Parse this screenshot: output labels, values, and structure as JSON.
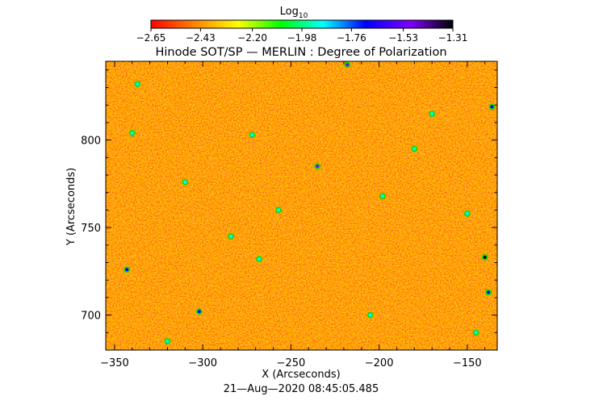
{
  "chart_data": {
    "type": "heatmap",
    "title": "Hinode SOT/SP — MERLIN : Degree of Polarization",
    "xlabel": "X (Arcseconds)",
    "ylabel": "Y (Arcseconds)",
    "xlim": [
      -355,
      -133
    ],
    "ylim": [
      680,
      845
    ],
    "x_ticks": [
      -350,
      -300,
      -250,
      -200,
      -150
    ],
    "y_ticks": [
      700,
      750,
      800
    ],
    "x_tick_labels": [
      "−350",
      "−300",
      "−250",
      "−200",
      "−150"
    ],
    "y_tick_labels": [
      "700",
      "750",
      "800"
    ],
    "colorbar": {
      "label_base": "Log",
      "label_sub": "10",
      "ticks": [
        -2.65,
        -2.43,
        -2.2,
        -1.98,
        -1.76,
        -1.53,
        -1.31
      ],
      "tick_labels": [
        "−2.65",
        "−2.43",
        "−2.20",
        "−1.98",
        "−1.76",
        "−1.53",
        "−1.31"
      ],
      "range": [
        -2.65,
        -1.31
      ],
      "colors": [
        "#ff0000",
        "#ff8000",
        "#ffff00",
        "#00ff00",
        "#00ffff",
        "#0000ff",
        "#8000ff",
        "#000000"
      ]
    },
    "typical_value": -2.55,
    "features": [
      {
        "x": -235,
        "y": 785,
        "value": -1.45
      },
      {
        "x": -140,
        "y": 733,
        "value": -1.35
      },
      {
        "x": -343,
        "y": 726,
        "value": -1.7
      },
      {
        "x": -284,
        "y": 745,
        "value": -1.8
      },
      {
        "x": -170,
        "y": 815,
        "value": -1.8
      },
      {
        "x": -218,
        "y": 843,
        "value": -1.5
      },
      {
        "x": -337,
        "y": 832,
        "value": -1.9
      },
      {
        "x": -150,
        "y": 758,
        "value": -1.9
      },
      {
        "x": -340,
        "y": 804,
        "value": -1.9
      },
      {
        "x": -302,
        "y": 702,
        "value": -1.7
      },
      {
        "x": -320,
        "y": 685,
        "value": -1.8
      },
      {
        "x": -205,
        "y": 700,
        "value": -1.8
      },
      {
        "x": -268,
        "y": 732,
        "value": -1.8
      },
      {
        "x": -257,
        "y": 760,
        "value": -1.95
      },
      {
        "x": -138,
        "y": 713,
        "value": -1.6
      },
      {
        "x": -180,
        "y": 795,
        "value": -1.95
      },
      {
        "x": -272,
        "y": 803,
        "value": -1.9
      },
      {
        "x": -198,
        "y": 768,
        "value": -1.95
      },
      {
        "x": -145,
        "y": 690,
        "value": -1.85
      },
      {
        "x": -310,
        "y": 776,
        "value": -1.9
      },
      {
        "x": -136,
        "y": 819,
        "value": -1.7
      }
    ],
    "timestamp": "21—Aug—2020 08:45:05.485"
  }
}
